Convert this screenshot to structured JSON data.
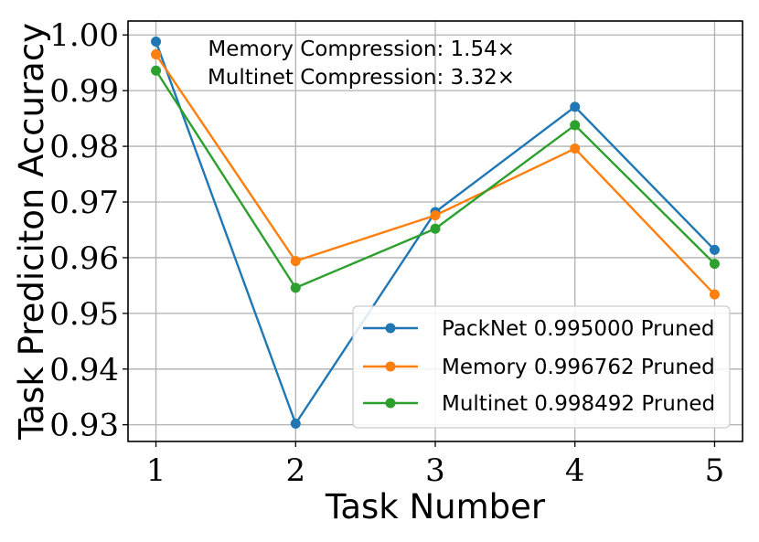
{
  "chart_data": {
    "type": "line",
    "xlabel": "Task Number",
    "ylabel": "Task Prediciton Accuracy",
    "x": [
      1,
      2,
      3,
      4,
      5
    ],
    "xticks": [
      "1",
      "2",
      "3",
      "4",
      "5"
    ],
    "xlim": [
      0.8,
      5.2
    ],
    "ylim": [
      0.927,
      1.0025
    ],
    "yticks": [
      "0.93",
      "0.94",
      "0.95",
      "0.96",
      "0.97",
      "0.98",
      "0.99",
      "1.00"
    ],
    "ytick_values": [
      0.93,
      0.94,
      0.95,
      0.96,
      0.97,
      0.98,
      0.99,
      1.0
    ],
    "grid": true,
    "legend_position": "lower-right",
    "annotations": [
      "Memory Compression: 1.54×",
      "Multinet Compression: 3.32×"
    ],
    "series": [
      {
        "name": "PackNet 0.995000 Pruned",
        "color": "#1f77b4",
        "values": [
          0.9988,
          0.9302,
          0.9682,
          0.9871,
          0.9614
        ]
      },
      {
        "name": "Memory 0.996762 Pruned",
        "color": "#ff7f0e",
        "values": [
          0.9965,
          0.9594,
          0.9676,
          0.9796,
          0.9534
        ]
      },
      {
        "name": "Multinet 0.998492 Pruned",
        "color": "#2ca02c",
        "values": [
          0.9936,
          0.9546,
          0.9652,
          0.9838,
          0.9589
        ]
      }
    ]
  }
}
